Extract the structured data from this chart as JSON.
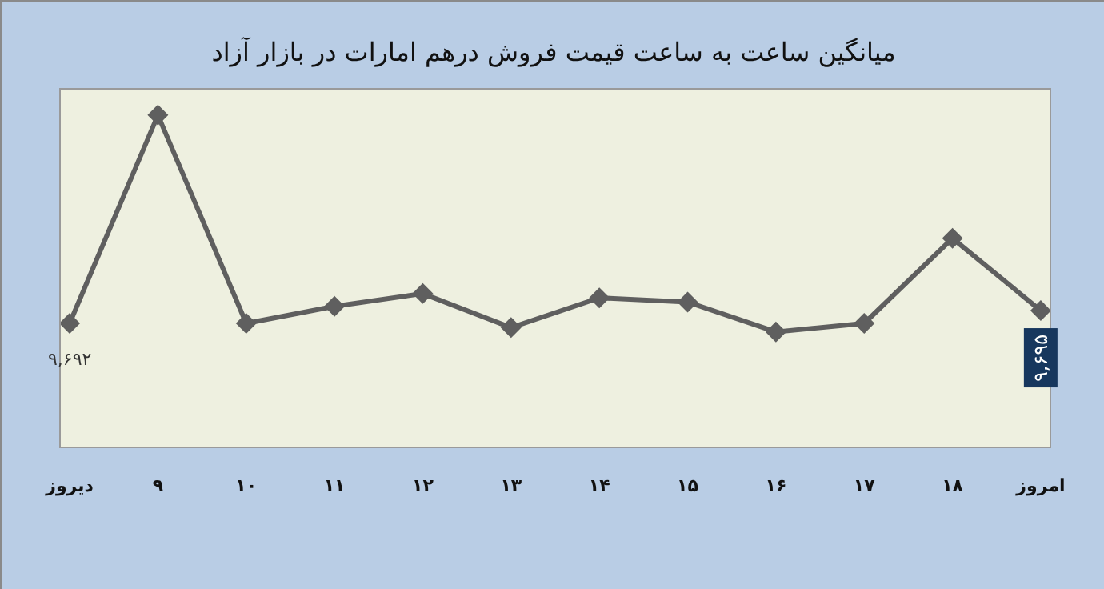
{
  "chart_data": {
    "type": "line",
    "title": "میانگین ساعت به ساعت قیمت فروش درهم امارات در بازار آزاد",
    "categories": [
      "دیروز",
      "۹",
      "۱۰",
      "۱۱",
      "۱۲",
      "۱۳",
      "۱۴",
      "۱۵",
      "۱۶",
      "۱۷",
      "۱۸",
      "امروز"
    ],
    "series": [
      {
        "color": "#5f5f5f",
        "values": [
          9692,
          9741,
          9692,
          9696,
          9699,
          9691,
          9698,
          9697,
          9690,
          9692,
          9712,
          9695
        ],
        "value_labels": [
          "۹,۶۹۲",
          null,
          null,
          null,
          null,
          null,
          null,
          null,
          null,
          null,
          null,
          "۹,۶۹۵"
        ]
      }
    ],
    "ylim": [
      9663,
      9747
    ],
    "tick_labels": "x",
    "grid": false,
    "marker": "diamond",
    "line_style": "solid"
  }
}
